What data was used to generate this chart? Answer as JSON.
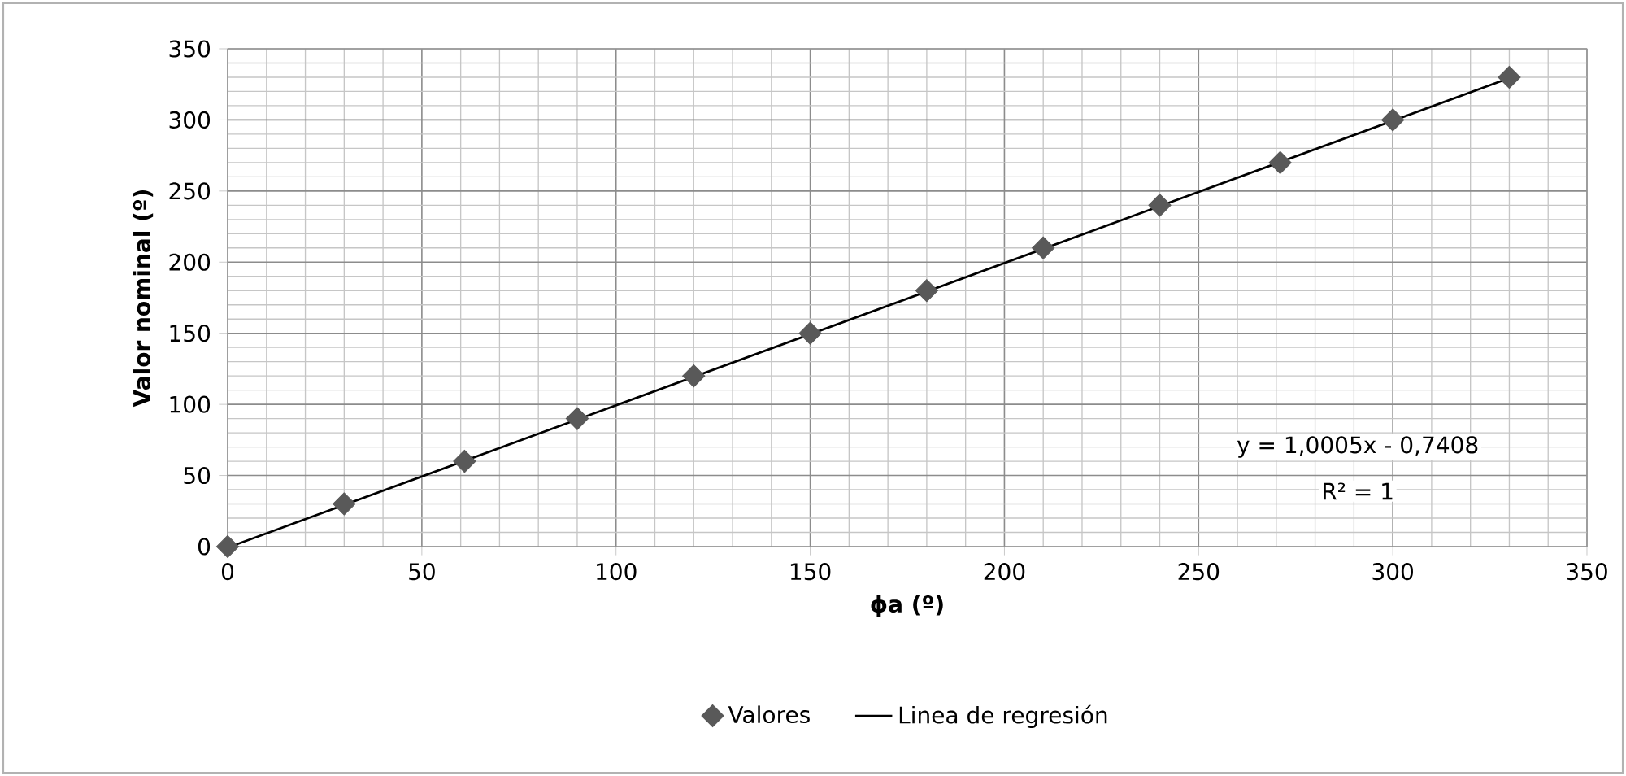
{
  "chart_data": {
    "type": "scatter",
    "xlabel": "ϕa (º)",
    "ylabel": "Valor nominal (º)",
    "xlim": [
      0,
      350
    ],
    "ylim": [
      0,
      350
    ],
    "xticks": [
      0,
      50,
      100,
      150,
      200,
      250,
      300,
      350
    ],
    "yticks": [
      0,
      50,
      100,
      150,
      200,
      250,
      300,
      350
    ],
    "grid": true,
    "legend": "bottom",
    "annotations": [
      "y = 1,0005x - 0,7408",
      "R² = 1"
    ],
    "series": [
      {
        "name": "Valores",
        "marker": "diamond",
        "color": "#595959",
        "x": [
          0,
          30,
          61,
          90,
          120,
          150,
          180,
          210,
          240,
          271,
          300,
          330
        ],
        "values": [
          0,
          30,
          60,
          90,
          120,
          150,
          180,
          210,
          240,
          270,
          300,
          330
        ]
      },
      {
        "name": "Linea de regresión",
        "type": "line",
        "color": "#000000",
        "x": [
          1,
          330
        ],
        "values": [
          0.3,
          329.4
        ]
      }
    ]
  }
}
